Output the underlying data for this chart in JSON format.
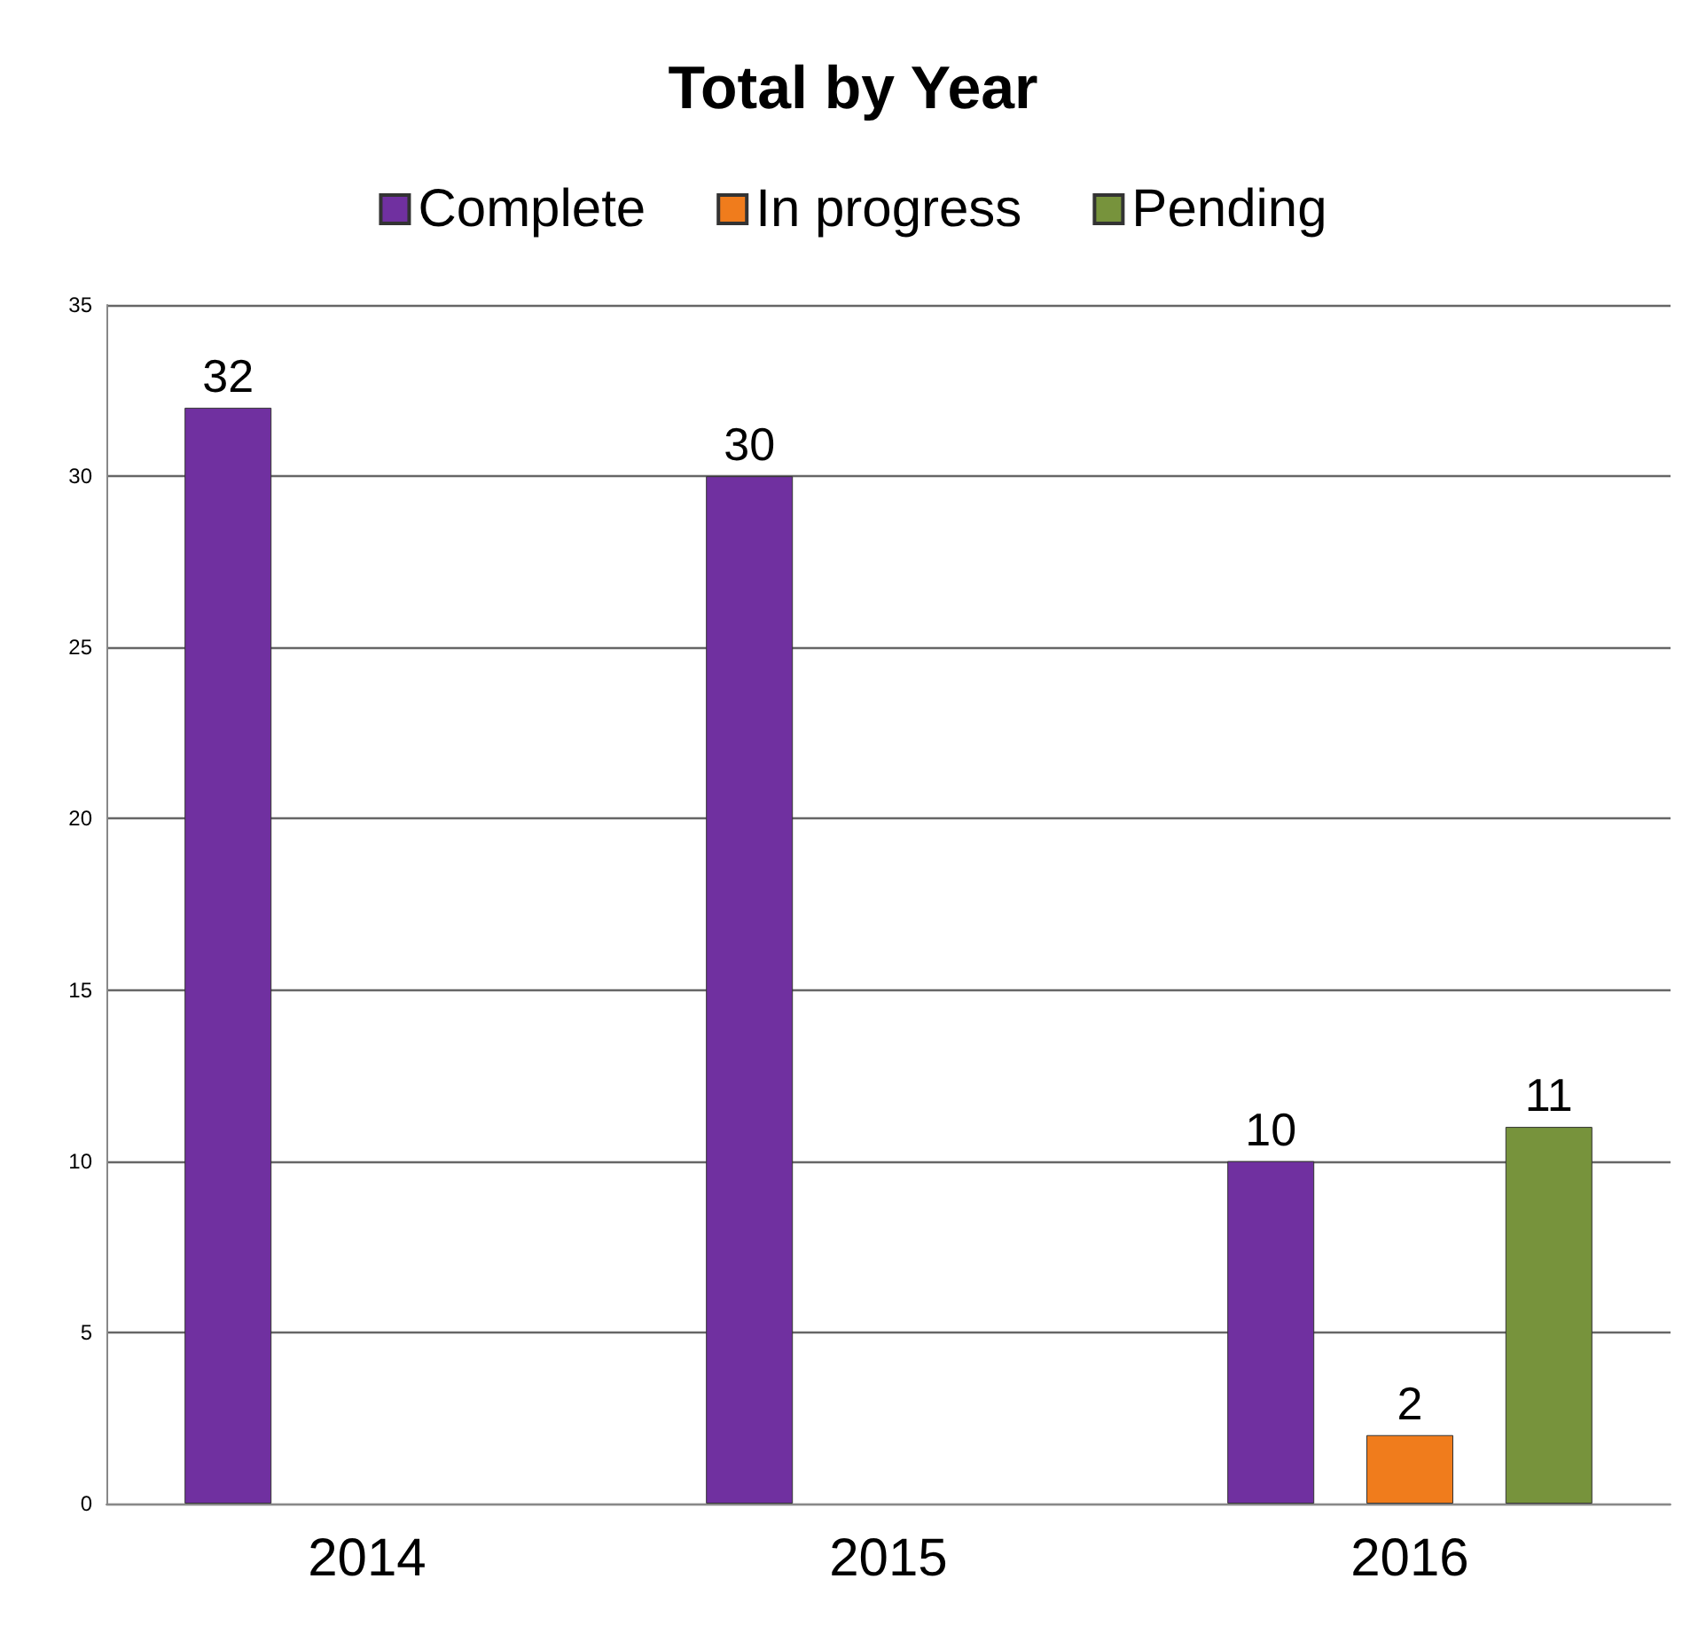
{
  "chart_data": {
    "type": "bar",
    "title": "Total by Year",
    "categories": [
      "2014",
      "2015",
      "2016"
    ],
    "series": [
      {
        "name": "Complete",
        "color": "#7030a0",
        "values": [
          32,
          30,
          10
        ]
      },
      {
        "name": "In progress",
        "color": "#f07c1c",
        "values": [
          null,
          null,
          2
        ]
      },
      {
        "name": "Pending",
        "color": "#77933c",
        "values": [
          null,
          null,
          11
        ]
      }
    ],
    "ylim": [
      0,
      35
    ],
    "yticks": [
      0,
      5,
      10,
      15,
      20,
      25,
      30,
      35
    ],
    "grid": "y",
    "legend": "top",
    "data_labels": true
  }
}
